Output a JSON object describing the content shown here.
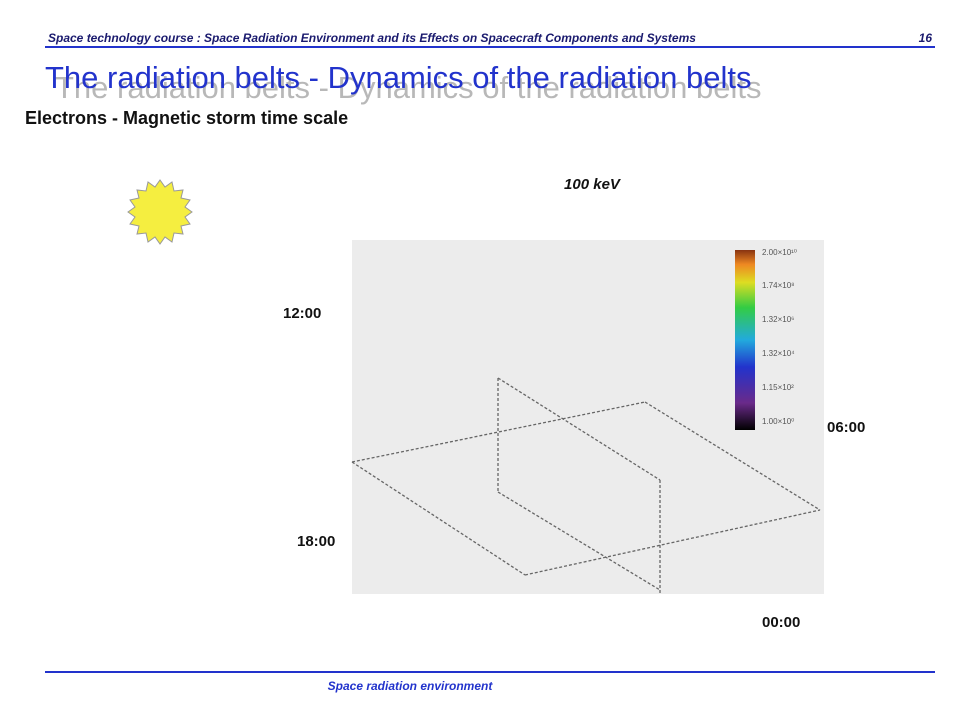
{
  "header": {
    "course": "Space technology course : Space Radiation Environment and its Effects on Spacecraft Components and Systems",
    "page": "16"
  },
  "title": "The radiation belts - Dynamics of the radiation belts",
  "subtitle": "Electrons - Magnetic storm time scale",
  "figure": {
    "energy": "100 keV",
    "times": [
      "12:00",
      "06:00",
      "18:00",
      "00:00"
    ],
    "colorbar": [
      "2.00×10¹⁰",
      "1.74×10⁸",
      "1.32×10⁶",
      "1.32×10⁴",
      "1.15×10²",
      "1.00×10⁰"
    ]
  },
  "footer": "Space radiation environment"
}
